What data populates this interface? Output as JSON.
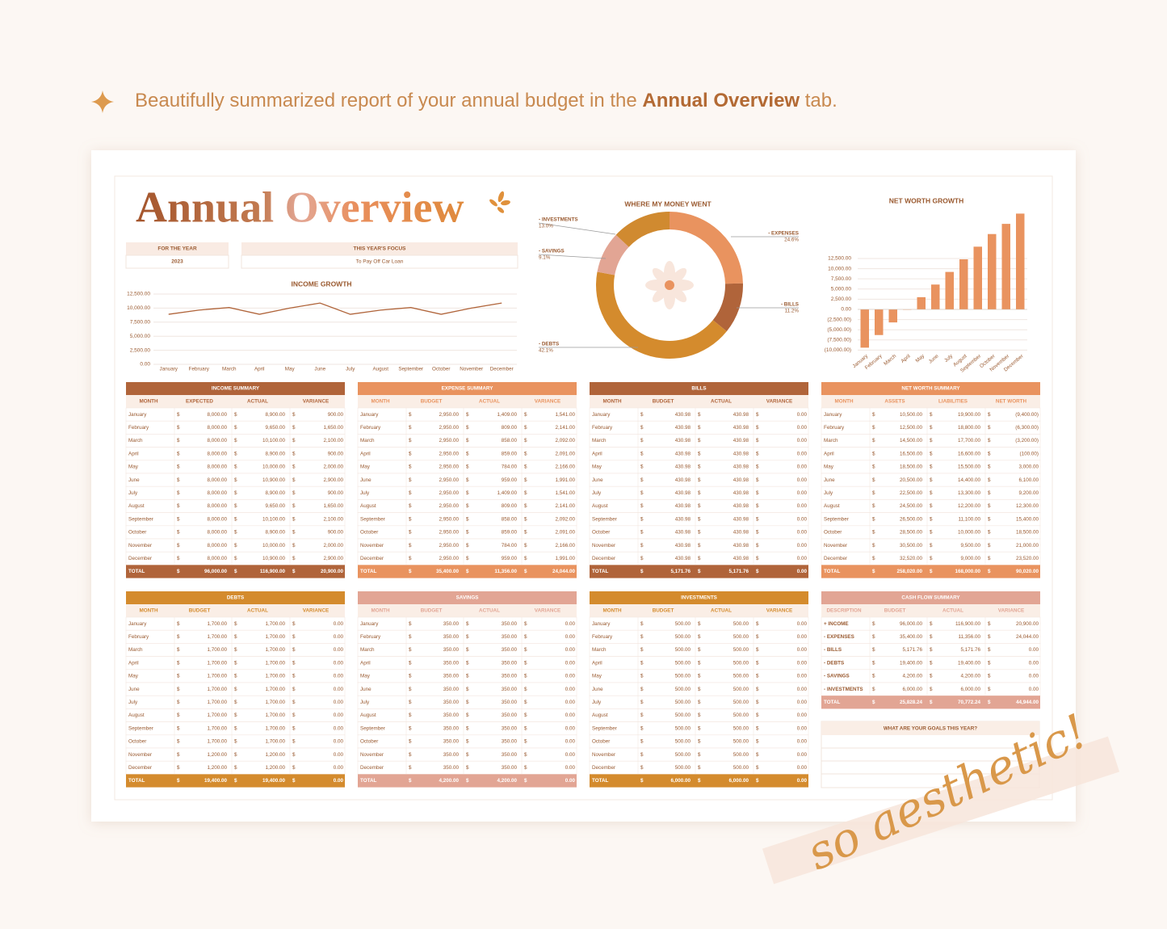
{
  "banner": {
    "before": "Beautifully summarized report of your annual budget in the ",
    "bold": "Annual Overview",
    "after": " tab."
  },
  "title": "Annual Overview",
  "for_the_year": {
    "label": "FOR THE YEAR",
    "value": "2023"
  },
  "focus": {
    "label": "THIS YEAR'S FOCUS",
    "value": "To Pay Off Car Loan"
  },
  "currency": "$",
  "chart_data": [
    {
      "type": "line",
      "title": "INCOME GROWTH",
      "categories": [
        "January",
        "February",
        "March",
        "April",
        "May",
        "June",
        "July",
        "August",
        "September",
        "October",
        "November",
        "December"
      ],
      "values": [
        8900,
        9650,
        10100,
        8900,
        10000,
        10900,
        8900,
        9650,
        10100,
        8900,
        10000,
        10900
      ],
      "color": "#b0643a",
      "ylim": [
        0,
        12500
      ],
      "yticks": [
        {
          "value": 0,
          "label": "0.00"
        },
        {
          "value": 2500,
          "label": "2,500.00"
        },
        {
          "value": 5000,
          "label": "5,000.00"
        },
        {
          "value": 7500,
          "label": "7,500.00"
        },
        {
          "value": 10000,
          "label": "10,000.00"
        },
        {
          "value": 12500,
          "label": "12,500.00"
        }
      ],
      "grid": true
    },
    {
      "type": "pie",
      "title": "WHERE MY MONEY WENT",
      "categories": [
        "- EXPENSES",
        "- BILLS",
        "- DEBTS",
        "- SAVINGS",
        "- INVESTMENTS"
      ],
      "values": [
        24.6,
        11.2,
        42.1,
        9.1,
        13.0
      ],
      "value_labels": [
        "24.6%",
        "11.2%",
        "42.1%",
        "9.1%",
        "13.0%"
      ],
      "colors": [
        "#e9935f",
        "#b0643a",
        "#d48b2d",
        "#e2a594",
        "#d08a30"
      ]
    },
    {
      "type": "bar",
      "title": "NET WORTH GROWTH",
      "categories": [
        "January",
        "February",
        "March",
        "April",
        "May",
        "June",
        "July",
        "August",
        "September",
        "October",
        "November",
        "December"
      ],
      "values": [
        -9400,
        -6300,
        -3200,
        -100,
        3000,
        6100,
        9200,
        12300,
        15400,
        18500,
        21000,
        23520
      ],
      "color": "#e9935f",
      "ylim": [
        -10000,
        24000
      ],
      "yticks": [
        {
          "value": 12500,
          "label": "12,500.00"
        },
        {
          "value": 10000,
          "label": "10,000.00"
        },
        {
          "value": 7500,
          "label": "7,500.00"
        },
        {
          "value": 5000,
          "label": "5,000.00"
        },
        {
          "value": 2500,
          "label": "2,500.00"
        },
        {
          "value": 0,
          "label": "0.00"
        },
        {
          "value": -2500,
          "label": "(2,500.00)"
        },
        {
          "value": -5000,
          "label": "(5,000.00)"
        },
        {
          "value": -7500,
          "label": "(7,500.00)"
        },
        {
          "value": -10000,
          "label": "(10,000.00)"
        }
      ],
      "grid": true
    }
  ],
  "tables": [
    {
      "title": "INCOME SUMMARY",
      "color": "#b0643a",
      "columns": [
        "MONTH",
        "EXPECTED",
        "ACTUAL",
        "VARIANCE"
      ],
      "rows": [
        [
          "January",
          "8,000.00",
          "8,900.00",
          "900.00"
        ],
        [
          "February",
          "8,000.00",
          "9,650.00",
          "1,650.00"
        ],
        [
          "March",
          "8,000.00",
          "10,100.00",
          "2,100.00"
        ],
        [
          "April",
          "8,000.00",
          "8,900.00",
          "900.00"
        ],
        [
          "May",
          "8,000.00",
          "10,000.00",
          "2,000.00"
        ],
        [
          "June",
          "8,000.00",
          "10,900.00",
          "2,900.00"
        ],
        [
          "July",
          "8,000.00",
          "8,900.00",
          "900.00"
        ],
        [
          "August",
          "8,000.00",
          "9,650.00",
          "1,650.00"
        ],
        [
          "September",
          "8,000.00",
          "10,100.00",
          "2,100.00"
        ],
        [
          "October",
          "8,000.00",
          "8,900.00",
          "900.00"
        ],
        [
          "November",
          "8,000.00",
          "10,000.00",
          "2,000.00"
        ],
        [
          "December",
          "8,000.00",
          "10,900.00",
          "2,900.00"
        ]
      ],
      "total": [
        "TOTAL",
        "96,000.00",
        "116,900.00",
        "20,900.00"
      ]
    },
    {
      "title": "EXPENSE SUMMARY",
      "color": "#e9935f",
      "columns": [
        "MONTH",
        "BUDGET",
        "ACTUAL",
        "VARIANCE"
      ],
      "rows": [
        [
          "January",
          "2,950.00",
          "1,409.00",
          "1,541.00"
        ],
        [
          "February",
          "2,950.00",
          "809.00",
          "2,141.00"
        ],
        [
          "March",
          "2,950.00",
          "858.00",
          "2,092.00"
        ],
        [
          "April",
          "2,950.00",
          "859.00",
          "2,091.00"
        ],
        [
          "May",
          "2,950.00",
          "784.00",
          "2,166.00"
        ],
        [
          "June",
          "2,950.00",
          "959.00",
          "1,991.00"
        ],
        [
          "July",
          "2,950.00",
          "1,409.00",
          "1,541.00"
        ],
        [
          "August",
          "2,950.00",
          "809.00",
          "2,141.00"
        ],
        [
          "September",
          "2,950.00",
          "858.00",
          "2,092.00"
        ],
        [
          "October",
          "2,950.00",
          "859.00",
          "2,091.00"
        ],
        [
          "November",
          "2,950.00",
          "784.00",
          "2,166.00"
        ],
        [
          "December",
          "2,950.00",
          "959.00",
          "1,991.00"
        ]
      ],
      "total": [
        "TOTAL",
        "35,400.00",
        "11,356.00",
        "24,044.00"
      ]
    },
    {
      "title": "BILLS",
      "color": "#b0643a",
      "columns": [
        "MONTH",
        "BUDGET",
        "ACTUAL",
        "VARIANCE"
      ],
      "rows": [
        [
          "January",
          "430.98",
          "430.98",
          "0.00"
        ],
        [
          "February",
          "430.98",
          "430.98",
          "0.00"
        ],
        [
          "March",
          "430.98",
          "430.98",
          "0.00"
        ],
        [
          "April",
          "430.98",
          "430.98",
          "0.00"
        ],
        [
          "May",
          "430.98",
          "430.98",
          "0.00"
        ],
        [
          "June",
          "430.98",
          "430.98",
          "0.00"
        ],
        [
          "July",
          "430.98",
          "430.98",
          "0.00"
        ],
        [
          "August",
          "430.98",
          "430.98",
          "0.00"
        ],
        [
          "September",
          "430.98",
          "430.98",
          "0.00"
        ],
        [
          "October",
          "430.98",
          "430.98",
          "0.00"
        ],
        [
          "November",
          "430.98",
          "430.98",
          "0.00"
        ],
        [
          "December",
          "430.98",
          "430.98",
          "0.00"
        ]
      ],
      "total": [
        "TOTAL",
        "5,171.76",
        "5,171.76",
        "0.00"
      ]
    },
    {
      "title": "NET WORTH SUMMARY",
      "color": "#e9935f",
      "columns": [
        "MONTH",
        "ASSETS",
        "LIABILITIES",
        "NET WORTH"
      ],
      "rows": [
        [
          "January",
          "10,500.00",
          "19,900.00",
          "(9,400.00)"
        ],
        [
          "February",
          "12,500.00",
          "18,800.00",
          "(6,300.00)"
        ],
        [
          "March",
          "14,500.00",
          "17,700.00",
          "(3,200.00)"
        ],
        [
          "April",
          "16,500.00",
          "16,600.00",
          "(100.00)"
        ],
        [
          "May",
          "18,500.00",
          "15,500.00",
          "3,000.00"
        ],
        [
          "June",
          "20,500.00",
          "14,400.00",
          "6,100.00"
        ],
        [
          "July",
          "22,500.00",
          "13,300.00",
          "9,200.00"
        ],
        [
          "August",
          "24,500.00",
          "12,200.00",
          "12,300.00"
        ],
        [
          "September",
          "26,500.00",
          "11,100.00",
          "15,400.00"
        ],
        [
          "October",
          "28,500.00",
          "10,000.00",
          "18,500.00"
        ],
        [
          "November",
          "30,500.00",
          "9,500.00",
          "21,000.00"
        ],
        [
          "December",
          "32,520.00",
          "9,000.00",
          "23,520.00"
        ]
      ],
      "total": [
        "TOTAL",
        "258,020.00",
        "168,000.00",
        "90,020.00"
      ]
    },
    {
      "title": "DEBTS",
      "color": "#d48b2d",
      "columns": [
        "MONTH",
        "BUDGET",
        "ACTUAL",
        "VARIANCE"
      ],
      "rows": [
        [
          "January",
          "1,700.00",
          "1,700.00",
          "0.00"
        ],
        [
          "February",
          "1,700.00",
          "1,700.00",
          "0.00"
        ],
        [
          "March",
          "1,700.00",
          "1,700.00",
          "0.00"
        ],
        [
          "April",
          "1,700.00",
          "1,700.00",
          "0.00"
        ],
        [
          "May",
          "1,700.00",
          "1,700.00",
          "0.00"
        ],
        [
          "June",
          "1,700.00",
          "1,700.00",
          "0.00"
        ],
        [
          "July",
          "1,700.00",
          "1,700.00",
          "0.00"
        ],
        [
          "August",
          "1,700.00",
          "1,700.00",
          "0.00"
        ],
        [
          "September",
          "1,700.00",
          "1,700.00",
          "0.00"
        ],
        [
          "October",
          "1,700.00",
          "1,700.00",
          "0.00"
        ],
        [
          "November",
          "1,200.00",
          "1,200.00",
          "0.00"
        ],
        [
          "December",
          "1,200.00",
          "1,200.00",
          "0.00"
        ]
      ],
      "total": [
        "TOTAL",
        "19,400.00",
        "19,400.00",
        "0.00"
      ]
    },
    {
      "title": "SAVINGS",
      "color": "#e2a594",
      "columns": [
        "MONTH",
        "BUDGET",
        "ACTUAL",
        "VARIANCE"
      ],
      "rows": [
        [
          "January",
          "350.00",
          "350.00",
          "0.00"
        ],
        [
          "February",
          "350.00",
          "350.00",
          "0.00"
        ],
        [
          "March",
          "350.00",
          "350.00",
          "0.00"
        ],
        [
          "April",
          "350.00",
          "350.00",
          "0.00"
        ],
        [
          "May",
          "350.00",
          "350.00",
          "0.00"
        ],
        [
          "June",
          "350.00",
          "350.00",
          "0.00"
        ],
        [
          "July",
          "350.00",
          "350.00",
          "0.00"
        ],
        [
          "August",
          "350.00",
          "350.00",
          "0.00"
        ],
        [
          "September",
          "350.00",
          "350.00",
          "0.00"
        ],
        [
          "October",
          "350.00",
          "350.00",
          "0.00"
        ],
        [
          "November",
          "350.00",
          "350.00",
          "0.00"
        ],
        [
          "December",
          "350.00",
          "350.00",
          "0.00"
        ]
      ],
      "total": [
        "TOTAL",
        "4,200.00",
        "4,200.00",
        "0.00"
      ]
    },
    {
      "title": "INVESTMENTS",
      "color": "#d48b2d",
      "columns": [
        "MONTH",
        "BUDGET",
        "ACTUAL",
        "VARIANCE"
      ],
      "rows": [
        [
          "January",
          "500.00",
          "500.00",
          "0.00"
        ],
        [
          "February",
          "500.00",
          "500.00",
          "0.00"
        ],
        [
          "March",
          "500.00",
          "500.00",
          "0.00"
        ],
        [
          "April",
          "500.00",
          "500.00",
          "0.00"
        ],
        [
          "May",
          "500.00",
          "500.00",
          "0.00"
        ],
        [
          "June",
          "500.00",
          "500.00",
          "0.00"
        ],
        [
          "July",
          "500.00",
          "500.00",
          "0.00"
        ],
        [
          "August",
          "500.00",
          "500.00",
          "0.00"
        ],
        [
          "September",
          "500.00",
          "500.00",
          "0.00"
        ],
        [
          "October",
          "500.00",
          "500.00",
          "0.00"
        ],
        [
          "November",
          "500.00",
          "500.00",
          "0.00"
        ],
        [
          "December",
          "500.00",
          "500.00",
          "0.00"
        ]
      ],
      "total": [
        "TOTAL",
        "6,000.00",
        "6,000.00",
        "0.00"
      ]
    },
    {
      "title": "CASH FLOW SUMMARY",
      "color": "#e2a594",
      "columns": [
        "DESCRIPTION",
        "BUDGET",
        "ACTUAL",
        "VARIANCE"
      ],
      "rows": [
        [
          "+ INCOME",
          "96,000.00",
          "116,900.00",
          "20,900.00"
        ],
        [
          "- EXPENSES",
          "35,400.00",
          "11,356.00",
          "24,044.00"
        ],
        [
          "- BILLS",
          "5,171.76",
          "5,171.76",
          "0.00"
        ],
        [
          "- DEBTS",
          "19,400.00",
          "19,400.00",
          "0.00"
        ],
        [
          "- SAVINGS",
          "4,200.00",
          "4,200.00",
          "0.00"
        ],
        [
          "- INVESTMENTS",
          "6,000.00",
          "6,000.00",
          "0.00"
        ]
      ],
      "total": [
        "TOTAL",
        "25,828.24",
        "70,772.24",
        "44,944.00"
      ]
    }
  ],
  "goals": {
    "label": "WHAT ARE YOUR GOALS THIS YEAR?"
  },
  "tagline": "so aesthetic!"
}
